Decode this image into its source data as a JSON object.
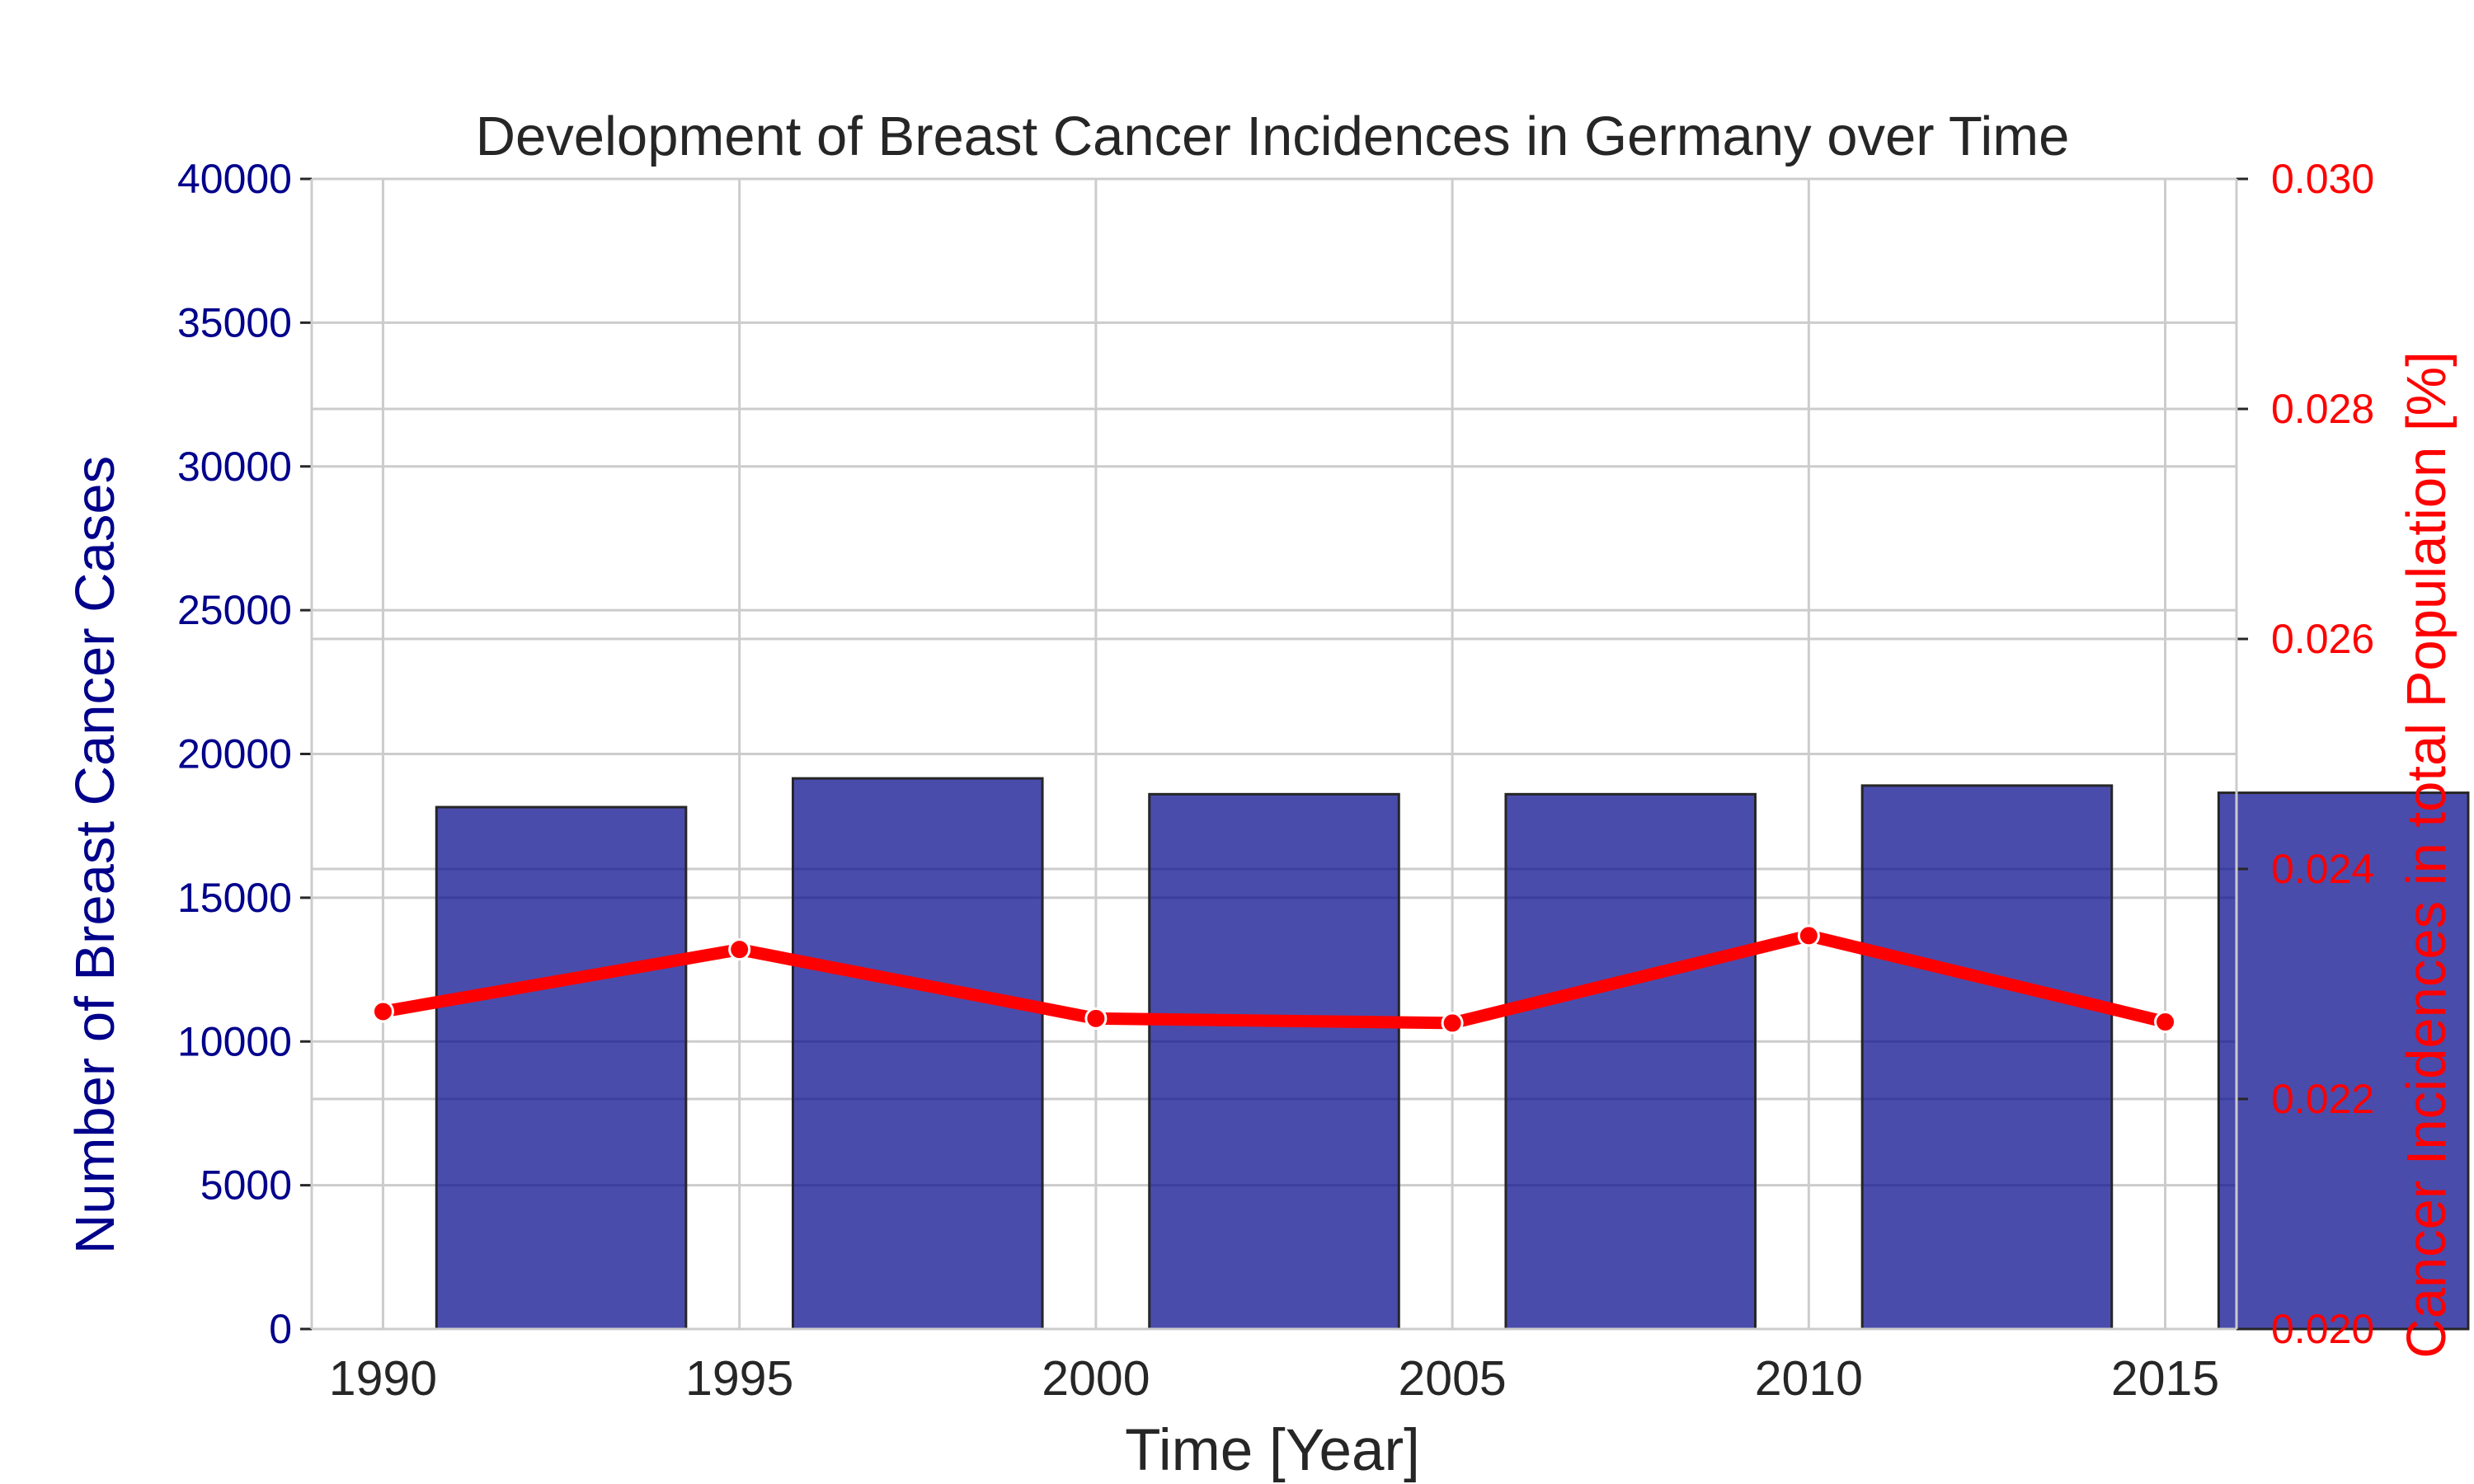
{
  "chart_data": {
    "type": "bar",
    "title": "Development of Breast Cancer Incidences in Germany over Time",
    "xlabel": "Time [Year]",
    "x": [
      1990,
      1995,
      2000,
      2005,
      2010,
      2015
    ],
    "x_ticks": [
      "1990",
      "1995",
      "2000",
      "2005",
      "2010",
      "2015"
    ],
    "xlim": [
      1989.0,
      2016.0
    ],
    "grid": true,
    "series": [
      {
        "type": "bar",
        "axis": "left",
        "color": "#0b0d8f",
        "values": [
          18150,
          19150,
          18600,
          18600,
          18900,
          18650
        ]
      },
      {
        "type": "line",
        "axis": "right",
        "color": "#ff0000",
        "values": [
          0.02276,
          0.0233,
          0.0227,
          0.02266,
          0.02342,
          0.02267
        ]
      }
    ],
    "y_left": {
      "label": "Number of Breast Cancer Cases",
      "color": "#00008b",
      "ylim": [
        0,
        40000
      ],
      "ticks": [
        "0",
        "5000",
        "10000",
        "15000",
        "20000",
        "25000",
        "30000",
        "35000",
        "40000"
      ]
    },
    "y_right": {
      "label": "Cancer Incidences in total Population [%]",
      "color": "#ff0000",
      "ylim": [
        0.02,
        0.03
      ],
      "ticks": [
        "0.020",
        "0.022",
        "0.024",
        "0.026",
        "0.028",
        "0.030"
      ]
    }
  }
}
